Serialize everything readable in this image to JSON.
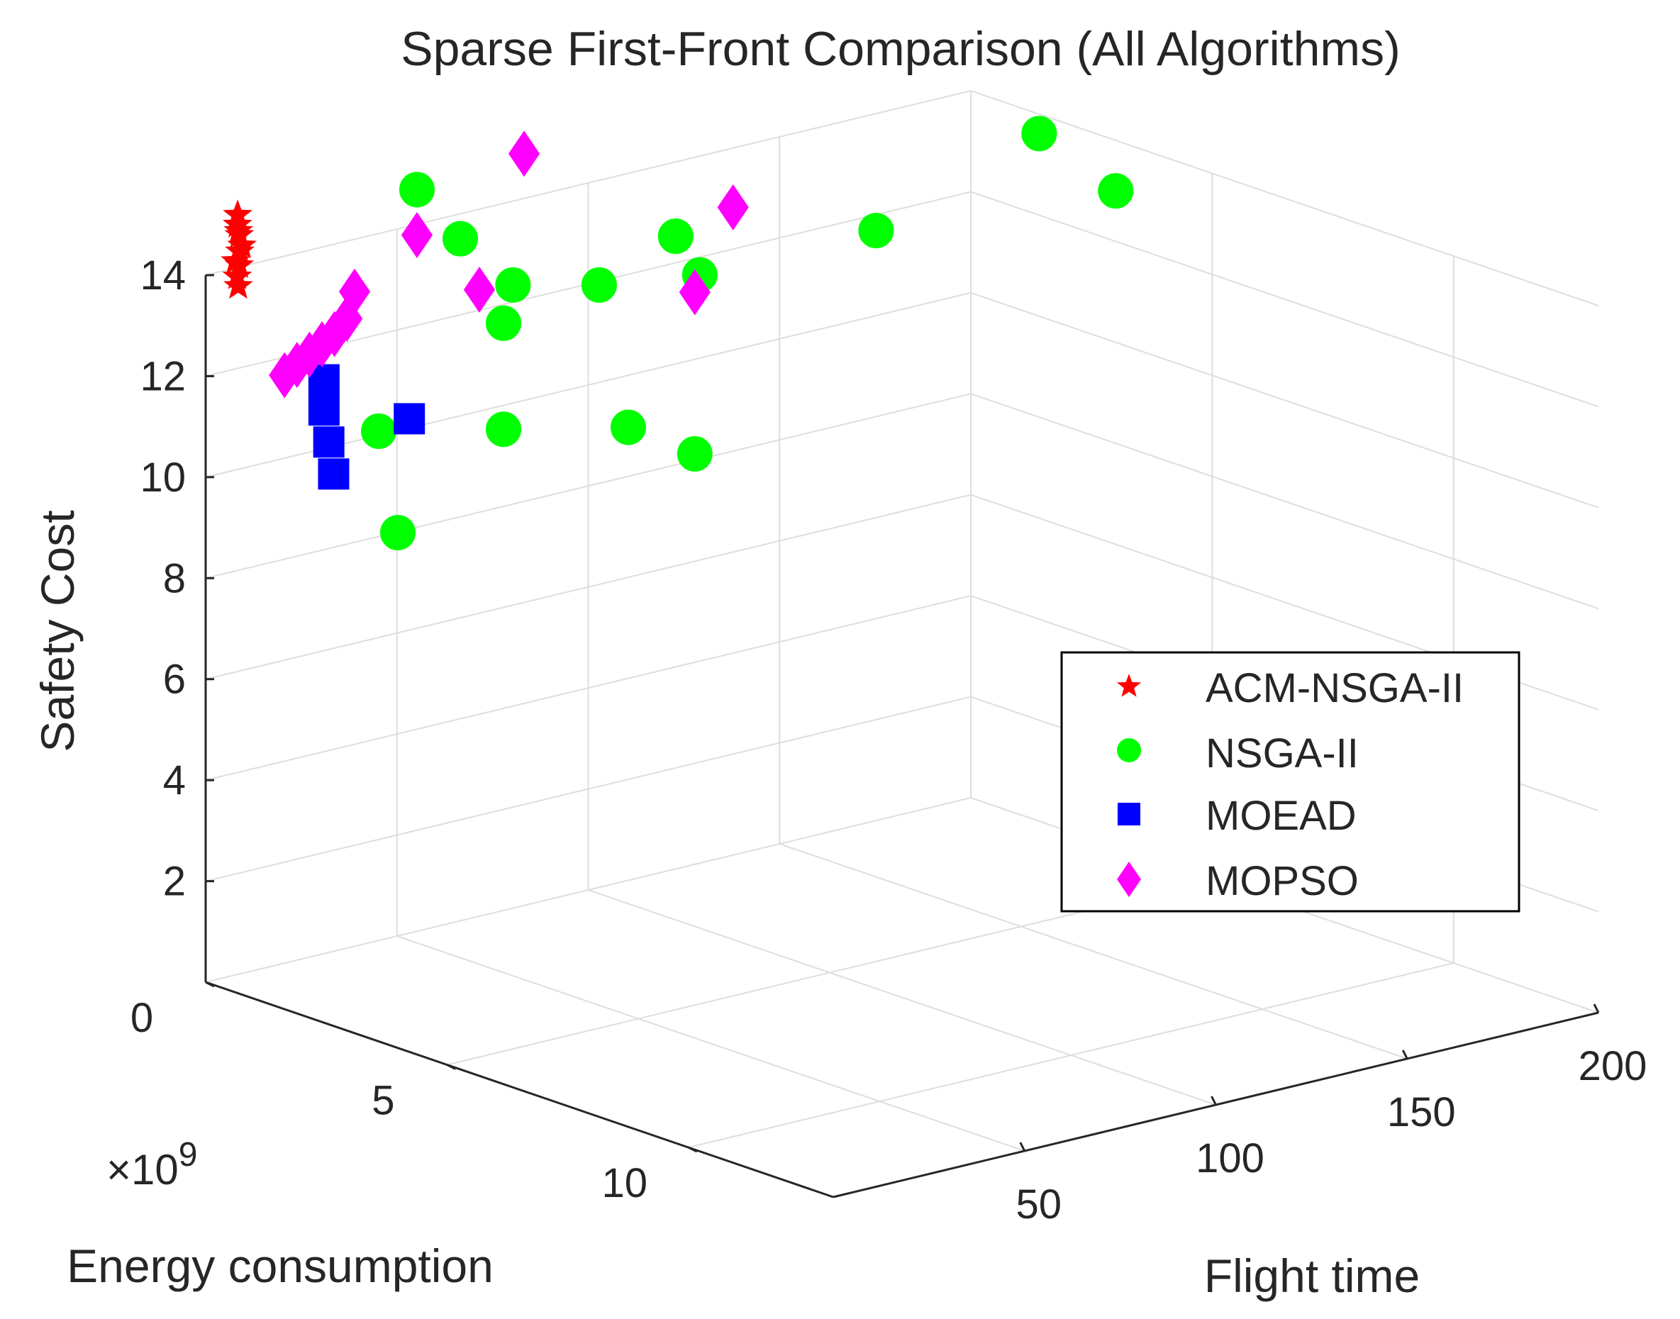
{
  "chart_data": {
    "type": "scatter3d",
    "title": "Sparse First-Front Comparison (All Algorithms)",
    "xlabel": "Flight time",
    "ylabel": "Energy consumption",
    "ylabel_exponent": "×10",
    "ylabel_exponent_power": "9",
    "zlabel": "Safety Cost",
    "xlim": [
      0,
      200
    ],
    "ylim": [
      0,
      13
    ],
    "zlim": [
      0,
      14
    ],
    "xticks": [
      50,
      100,
      150,
      200
    ],
    "yticks": [
      0,
      5,
      10
    ],
    "zticks": [
      2,
      4,
      6,
      8,
      10,
      12,
      14
    ],
    "grid": true,
    "legend_location": "east",
    "series": [
      {
        "name": "ACM-NSGA-II",
        "marker": "star",
        "color": "#ff0000",
        "points": [
          [
            4,
            0.3,
            14.3
          ],
          [
            4.5,
            0.35,
            14.5
          ],
          [
            5,
            0.3,
            14.8
          ],
          [
            4.2,
            0.32,
            14.0
          ],
          [
            4.8,
            0.28,
            15.0
          ],
          [
            5.2,
            0.34,
            14.6
          ],
          [
            4.6,
            0.31,
            13.8
          ],
          [
            4.4,
            0.33,
            14.9
          ],
          [
            5.0,
            0.3,
            14.2
          ],
          [
            4.7,
            0.29,
            15.2
          ]
        ]
      },
      {
        "name": "NSGA-II",
        "marker": "circle",
        "color": "#00ff00",
        "points": [
          [
            30,
            2,
            15.8
          ],
          [
            35,
            2.5,
            14.9
          ],
          [
            45,
            2.8,
            13.9
          ],
          [
            65,
            3,
            13.6
          ],
          [
            85,
            3,
            14.2
          ],
          [
            85,
            3.5,
            13.6
          ],
          [
            40,
            3,
            13.3
          ],
          [
            180,
            3,
            14.5
          ],
          [
            150,
            2,
            12.8
          ],
          [
            200,
            3,
            13.0
          ],
          [
            40,
            3,
            11.2
          ],
          [
            60,
            4,
            11.2
          ],
          [
            20,
            2,
            11.2
          ],
          [
            90,
            3,
            9.8
          ],
          [
            25,
            2,
            9.1
          ]
        ]
      },
      {
        "name": "MOEAD",
        "marker": "square",
        "color": "#0000ff",
        "points": [
          [
            12,
            1.5,
            12.2
          ],
          [
            12,
            1.5,
            11.6
          ],
          [
            12,
            1.6,
            11.0
          ],
          [
            12,
            1.7,
            10.4
          ],
          [
            28,
            2,
            11.3
          ]
        ]
      },
      {
        "name": "MOPSO",
        "marker": "diamond",
        "color": "#ff00ff",
        "points": [
          [
            58,
            2,
            16.0
          ],
          [
            30,
            2,
            14.9
          ],
          [
            20,
            1.5,
            13.8
          ],
          [
            40,
            2.5,
            13.8
          ],
          [
            18,
            1.5,
            13.3
          ],
          [
            16,
            1.4,
            13.0
          ],
          [
            14,
            1.3,
            12.8
          ],
          [
            12,
            1.2,
            12.6
          ],
          [
            10,
            1.1,
            12.4
          ],
          [
            8,
            1.0,
            12.2
          ],
          [
            100,
            3,
            14.5
          ],
          [
            90,
            3,
            13.0
          ]
        ]
      }
    ]
  }
}
